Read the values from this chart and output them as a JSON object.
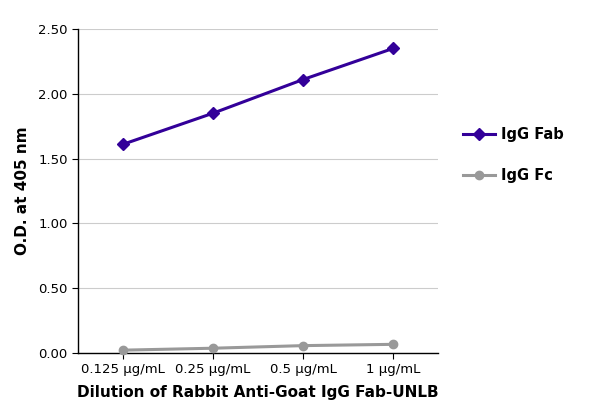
{
  "x_labels": [
    "0.125 μg/mL",
    "0.25 μg/mL",
    "0.5 μg/mL",
    "1 μg/mL"
  ],
  "x_positions": [
    0,
    1,
    2,
    3
  ],
  "igg_fab_values": [
    1.61,
    1.85,
    2.11,
    2.35
  ],
  "igg_fc_values": [
    0.02,
    0.035,
    0.055,
    0.065
  ],
  "fab_color": "#330099",
  "fc_color": "#999999",
  "fab_label": "IgG Fab",
  "fc_label": "IgG Fc",
  "ylabel": "O.D. at 405 nm",
  "xlabel": "Dilution of Rabbit Anti-Goat IgG Fab-UNLB",
  "ylim": [
    0.0,
    2.5
  ],
  "yticks": [
    0.0,
    0.5,
    1.0,
    1.5,
    2.0,
    2.5
  ],
  "ytick_labels": [
    "0.00",
    "0.50",
    "1.00",
    "1.50",
    "2.00",
    "2.50"
  ],
  "grid_color": "#cccccc",
  "background_color": "#ffffff",
  "marker_size": 6,
  "line_width": 2.2,
  "tick_fontsize": 9.5,
  "label_fontsize": 11,
  "legend_fontsize": 10.5
}
